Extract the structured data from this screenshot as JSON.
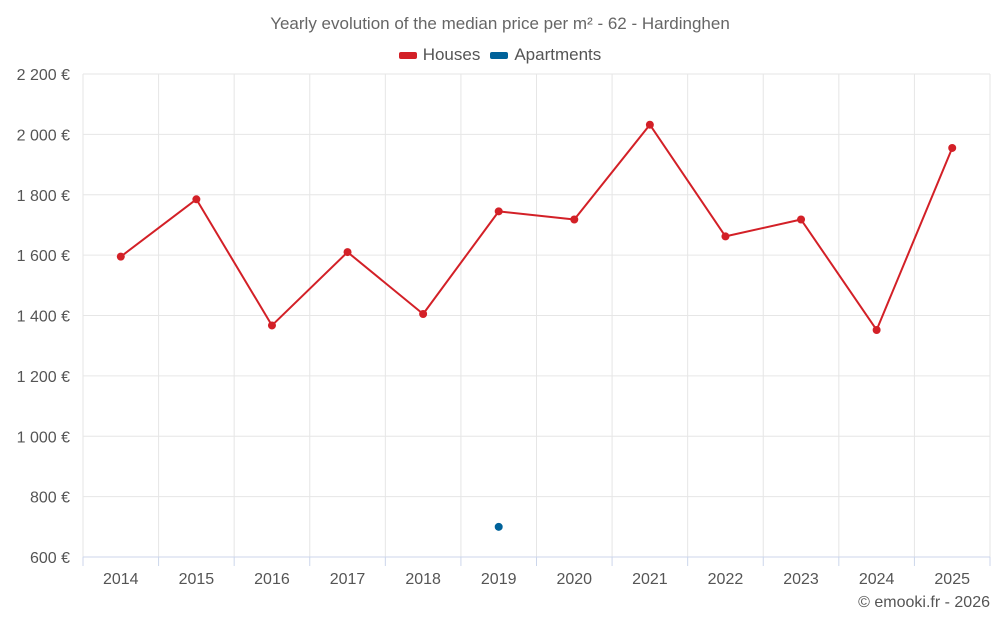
{
  "chart_data": {
    "type": "line",
    "title": "Yearly evolution of the median price per m² - 62 - Hardinghen",
    "categories": [
      "2014",
      "2015",
      "2016",
      "2017",
      "2018",
      "2019",
      "2020",
      "2021",
      "2022",
      "2023",
      "2024",
      "2025"
    ],
    "series": [
      {
        "name": "Houses",
        "color": "#d32027",
        "values": [
          1595,
          1785,
          1367,
          1610,
          1405,
          1745,
          1718,
          2032,
          1662,
          1718,
          1352,
          1955
        ]
      },
      {
        "name": "Apartments",
        "color": "#00629a",
        "values": [
          null,
          null,
          null,
          null,
          null,
          700,
          null,
          null,
          null,
          null,
          null,
          null
        ]
      }
    ],
    "ylim": [
      600,
      2200
    ],
    "yticks": [
      600,
      800,
      1000,
      1200,
      1400,
      1600,
      1800,
      2000,
      2200
    ],
    "ytick_labels": [
      "600 €",
      "800 €",
      "1 000 €",
      "1 200 €",
      "1 400 €",
      "1 600 €",
      "1 800 €",
      "2 000 €",
      "2 200 €"
    ],
    "grid": true,
    "legend_position": "top-center"
  },
  "credit": "© emooki.fr - 2026"
}
